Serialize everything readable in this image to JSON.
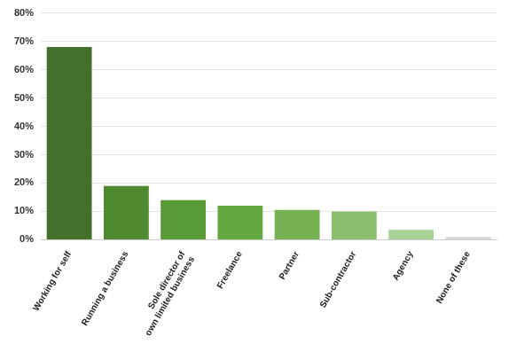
{
  "chart_data": {
    "type": "bar",
    "categories": [
      "Working for self",
      "Running a business",
      "Sole director of own limited business",
      "Freelance",
      "Partner",
      "Sub-contractor",
      "Agency",
      "None of these"
    ],
    "values": [
      68,
      19,
      14,
      12,
      10.5,
      10,
      3.5,
      1
    ],
    "colors": [
      "#43702a",
      "#4f8a30",
      "#579a36",
      "#63a83e",
      "#76b254",
      "#8cc06e",
      "#a9d296",
      "#d6d6d6"
    ],
    "ylim": [
      0,
      80
    ],
    "yticks": [
      {
        "value": 0,
        "label": "0%"
      },
      {
        "value": 10,
        "label": "10%"
      },
      {
        "value": 20,
        "label": "20%"
      },
      {
        "value": 30,
        "label": "30%"
      },
      {
        "value": 40,
        "label": "40%"
      },
      {
        "value": 50,
        "label": "50%"
      },
      {
        "value": 60,
        "label": "60%"
      },
      {
        "value": 70,
        "label": "70%"
      },
      {
        "value": 80,
        "label": "80%"
      }
    ],
    "grid": true
  }
}
